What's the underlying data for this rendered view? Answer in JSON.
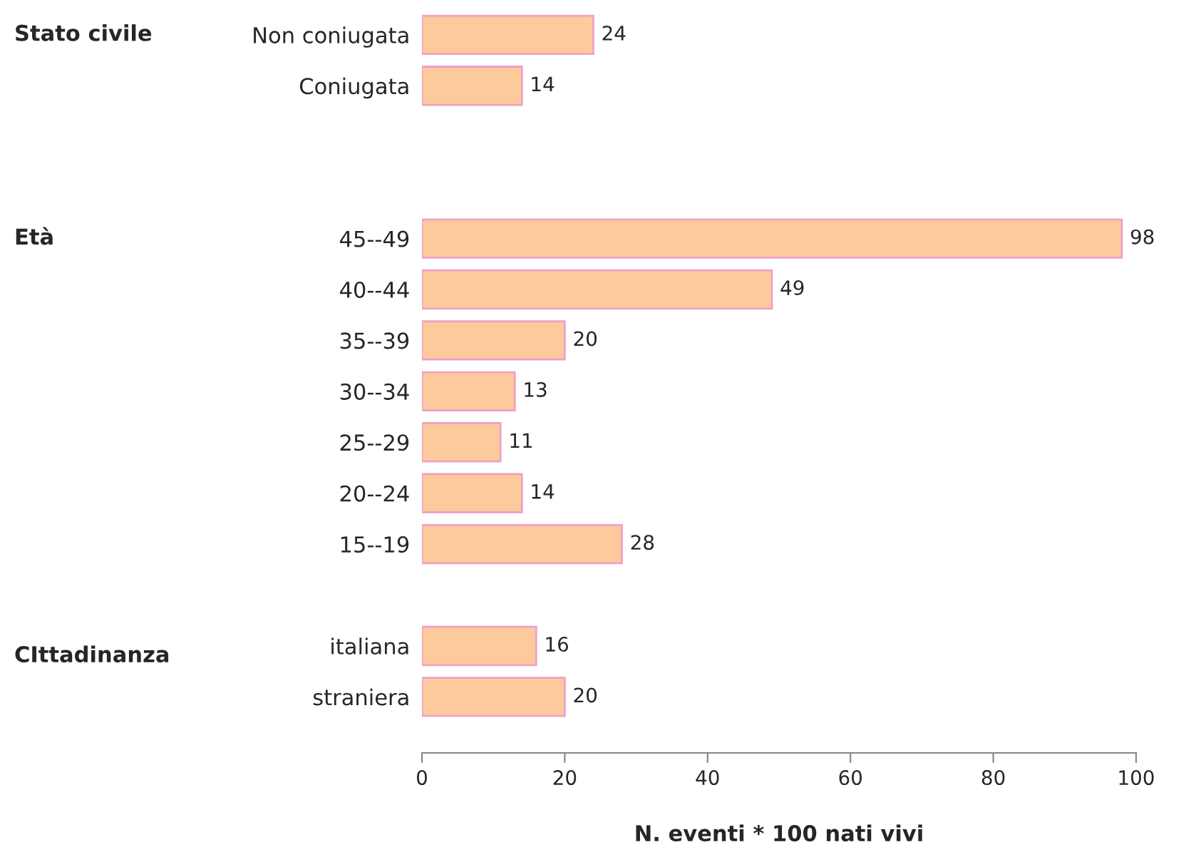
{
  "chart_data": {
    "type": "bar",
    "orientation": "horizontal",
    "categories": [
      "Non coniugata",
      "Coniugata",
      null,
      null,
      "45--49",
      "40--44",
      "35--39",
      "30--34",
      "25--29",
      "20--24",
      "15--19",
      null,
      "italiana",
      "straniera",
      null
    ],
    "values": [
      24,
      14,
      null,
      null,
      98,
      49,
      20,
      13,
      11,
      14,
      28,
      null,
      16,
      20,
      null
    ],
    "color": "#fdca9c",
    "xlim": [
      0,
      100
    ],
    "xticks": [
      0,
      20,
      40,
      60,
      80,
      100
    ],
    "xlabel": "N. eventi * 100 nati vivi",
    "data_labels": true,
    "grid": false,
    "legend": false,
    "annotations": [
      "Stato civile",
      "Età",
      "CIttadinanza"
    ]
  }
}
